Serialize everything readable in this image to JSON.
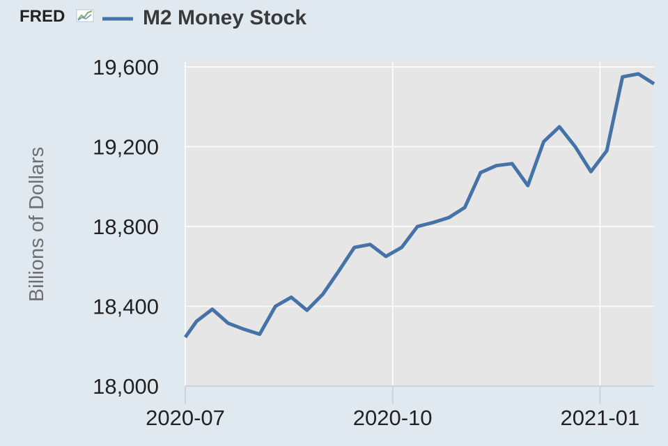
{
  "header": {
    "brand": "FRED",
    "brand_icon": "line-chart-icon",
    "title": "M2 Money Stock"
  },
  "colors": {
    "series": "#4572a7",
    "plot_background": "#e6e6e6",
    "page_background": "#e1e9f0",
    "gridline": "#ffffff",
    "axis": "#c8d4e0"
  },
  "chart_data": {
    "type": "line",
    "title": "M2 Money Stock",
    "xlabel": "",
    "ylabel": "Billions of Dollars",
    "ylim": [
      18000,
      19600
    ],
    "yticks": [
      18000,
      18400,
      18800,
      19200,
      19600
    ],
    "ytick_labels": [
      "18,000",
      "18,400",
      "18,800",
      "19,200",
      "19,600"
    ],
    "xlim": [
      "2020-07-01",
      "2021-01-25"
    ],
    "xticks": [
      "2020-07-01",
      "2020-10-01",
      "2021-01-01"
    ],
    "xtick_labels": [
      "2020-07",
      "2020-10",
      "2021-01"
    ],
    "grid": true,
    "series": [
      {
        "name": "M2 Money Stock",
        "x": [
          "2020-07-01",
          "2020-07-06",
          "2020-07-13",
          "2020-07-20",
          "2020-07-27",
          "2020-08-03",
          "2020-08-10",
          "2020-08-17",
          "2020-08-24",
          "2020-08-31",
          "2020-09-07",
          "2020-09-14",
          "2020-09-21",
          "2020-09-28",
          "2020-10-05",
          "2020-10-12",
          "2020-10-19",
          "2020-10-26",
          "2020-11-02",
          "2020-11-09",
          "2020-11-16",
          "2020-11-23",
          "2020-11-30",
          "2020-12-07",
          "2020-12-14",
          "2020-12-21",
          "2020-12-28",
          "2021-01-04",
          "2021-01-11",
          "2021-01-18",
          "2021-01-25"
        ],
        "values": [
          18245,
          18325,
          18385,
          18315,
          18285,
          18260,
          18400,
          18445,
          18380,
          18460,
          18575,
          18695,
          18710,
          18650,
          18695,
          18800,
          18820,
          18845,
          18895,
          19070,
          19105,
          19115,
          19005,
          19225,
          19300,
          19200,
          19075,
          19180,
          19550,
          19565,
          19515
        ]
      }
    ]
  }
}
